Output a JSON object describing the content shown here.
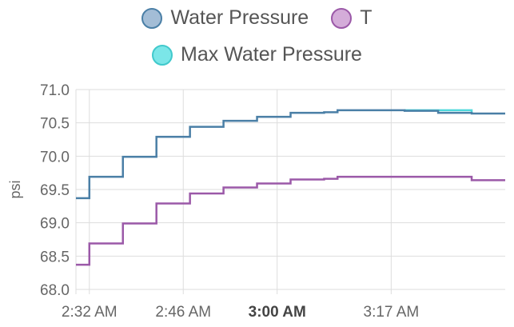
{
  "chart_data": {
    "type": "line",
    "step": true,
    "ylabel": "psi",
    "xlabel": "",
    "ylim": [
      68.0,
      71.0
    ],
    "y_ticks": [
      "68.0",
      "68.5",
      "69.0",
      "69.5",
      "70.0",
      "70.5",
      "71.0"
    ],
    "x_ticks": [
      {
        "label": "2:32 AM",
        "t": "02:32",
        "bold": false
      },
      {
        "label": "2:46 AM",
        "t": "02:46",
        "bold": false
      },
      {
        "label": "3:00 AM",
        "t": "03:00",
        "bold": true
      },
      {
        "label": "3:17 AM",
        "t": "03:17",
        "bold": false
      }
    ],
    "x_range": [
      "02:30",
      "03:34"
    ],
    "grid": true,
    "legend_position": "top",
    "series": [
      {
        "name": "Water Pressure",
        "color": "#4a7fa6",
        "swatch_fill": "#a3bdd6",
        "swatch_stroke": "#4a7fa6",
        "points": [
          [
            "02:30",
            69.37
          ],
          [
            "02:32",
            69.69
          ],
          [
            "02:37",
            69.99
          ],
          [
            "02:42",
            70.29
          ],
          [
            "02:47",
            70.44
          ],
          [
            "02:52",
            70.53
          ],
          [
            "02:57",
            70.59
          ],
          [
            "03:02",
            70.65
          ],
          [
            "03:07",
            70.66
          ],
          [
            "03:09",
            70.69
          ],
          [
            "03:19",
            70.68
          ],
          [
            "03:24",
            70.65
          ],
          [
            "03:29",
            70.64
          ],
          [
            "03:34",
            70.64
          ]
        ]
      },
      {
        "name": "T",
        "color": "#9b59a8",
        "swatch_fill": "#d4acd9",
        "swatch_stroke": "#9b59a8",
        "points": [
          [
            "02:30",
            68.37
          ],
          [
            "02:32",
            68.69
          ],
          [
            "02:37",
            68.99
          ],
          [
            "02:42",
            69.29
          ],
          [
            "02:47",
            69.44
          ],
          [
            "02:52",
            69.53
          ],
          [
            "02:57",
            69.59
          ],
          [
            "03:02",
            69.65
          ],
          [
            "03:07",
            69.66
          ],
          [
            "03:09",
            69.69
          ],
          [
            "03:29",
            69.64
          ],
          [
            "03:34",
            69.64
          ]
        ]
      },
      {
        "name": "Max Water Pressure",
        "color": "#4ed9dc",
        "swatch_fill": "#7be6e8",
        "swatch_stroke": "#41c9cc",
        "points": [
          [
            "03:19",
            70.69
          ],
          [
            "03:29",
            70.69
          ],
          [
            "03:29",
            70.64
          ]
        ]
      }
    ]
  }
}
